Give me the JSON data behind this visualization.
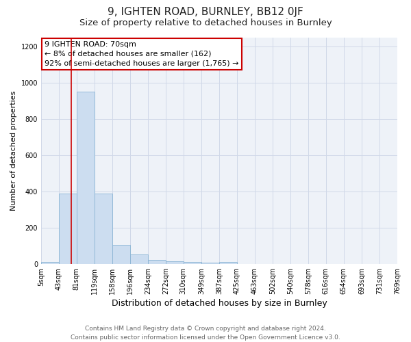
{
  "title": "9, IGHTEN ROAD, BURNLEY, BB12 0JF",
  "subtitle": "Size of property relative to detached houses in Burnley",
  "xlabel": "Distribution of detached houses by size in Burnley",
  "ylabel": "Number of detached properties",
  "bar_edges": [
    5,
    43,
    81,
    119,
    158,
    196,
    234,
    272,
    310,
    349,
    387,
    425,
    463,
    502,
    540,
    578,
    616,
    654,
    693,
    731,
    769
  ],
  "bar_heights": [
    10,
    390,
    950,
    390,
    105,
    50,
    20,
    15,
    10,
    5,
    10,
    0,
    0,
    0,
    0,
    0,
    0,
    0,
    0,
    0
  ],
  "bar_color": "#ccddf0",
  "bar_edge_color": "#8ab4d4",
  "property_size": 70,
  "red_line_color": "#cc0000",
  "annotation_line1": "9 IGHTEN ROAD: 70sqm",
  "annotation_line2": "← 8% of detached houses are smaller (162)",
  "annotation_line3": "92% of semi-detached houses are larger (1,765) →",
  "annotation_box_color": "#cc0000",
  "ylim": [
    0,
    1250
  ],
  "yticks": [
    0,
    200,
    400,
    600,
    800,
    1000,
    1200
  ],
  "footer_line1": "Contains HM Land Registry data © Crown copyright and database right 2024.",
  "footer_line2": "Contains public sector information licensed under the Open Government Licence v3.0.",
  "fig_bg_color": "#ffffff",
  "plot_bg_color": "#eef2f8",
  "grid_color": "#d0d8e8",
  "title_fontsize": 11,
  "subtitle_fontsize": 9.5,
  "xlabel_fontsize": 9,
  "ylabel_fontsize": 8,
  "tick_fontsize": 7,
  "annotation_fontsize": 8,
  "footer_fontsize": 6.5
}
